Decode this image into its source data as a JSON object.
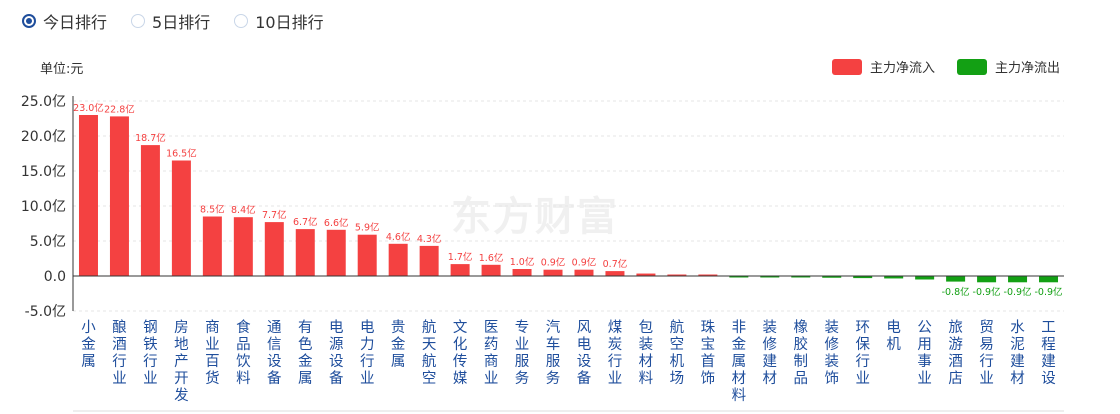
{
  "tabs": [
    {
      "label": "今日排行",
      "selected": true
    },
    {
      "label": "5日排行",
      "selected": false
    },
    {
      "label": "10日排行",
      "selected": false
    }
  ],
  "watermark": "东方财富",
  "chart_data": {
    "type": "bar",
    "unit_label": "单位:元",
    "legend": [
      {
        "name": "主力净流入",
        "color": "#f44141"
      },
      {
        "name": "主力净流出",
        "color": "#13a014"
      }
    ],
    "legend_position": "top-right",
    "grid": true,
    "ylim": [
      -5,
      25
    ],
    "yticks": [
      {
        "value": 25,
        "label": "25.0亿"
      },
      {
        "value": 20,
        "label": "20.0亿"
      },
      {
        "value": 15,
        "label": "15.0亿"
      },
      {
        "value": 10,
        "label": "10.0亿"
      },
      {
        "value": 5,
        "label": "5.0亿"
      },
      {
        "value": 0,
        "label": "0.0"
      },
      {
        "value": -5,
        "label": "-5.0亿"
      }
    ],
    "categories": [
      "小金属",
      "酿酒行业",
      "钢铁行业",
      "房地产开发",
      "商业百货",
      "食品饮料",
      "通信设备",
      "有色金属",
      "电源设备",
      "电力行业",
      "贵金属",
      "航天航空",
      "文化传媒",
      "医药商业",
      "专业服务",
      "汽车服务",
      "风电设备",
      "煤炭行业",
      "包装材料",
      "航空机场",
      "珠宝首饰",
      "非金属材料",
      "装修建材",
      "橡胶制品",
      "装修装饰",
      "环保行业",
      "电机",
      "公用事业",
      "旅游酒店",
      "贸易行业",
      "水泥建材",
      "工程建设"
    ],
    "values": [
      23.0,
      22.8,
      18.7,
      16.5,
      8.5,
      8.4,
      7.7,
      6.7,
      6.6,
      5.9,
      4.6,
      4.3,
      1.7,
      1.6,
      1.0,
      0.9,
      0.9,
      0.7,
      0.35,
      0.05,
      0.04,
      -0.1,
      -0.15,
      -0.2,
      -0.25,
      -0.3,
      -0.35,
      -0.5,
      -0.8,
      -0.9,
      -0.9,
      -0.9
    ],
    "data_labels": [
      "23.0亿",
      "22.8亿",
      "18.7亿",
      "16.5亿",
      "8.5亿",
      "8.4亿",
      "7.7亿",
      "6.7亿",
      "6.6亿",
      "5.9亿",
      "4.6亿",
      "4.3亿",
      "1.7亿",
      "1.6亿",
      "1.0亿",
      "0.9亿",
      "0.9亿",
      "0.7亿",
      "",
      "",
      "",
      "",
      "",
      "",
      "",
      "",
      "",
      "",
      "-0.8亿",
      "-0.9亿",
      "-0.9亿",
      "-0.9亿"
    ],
    "colors": {
      "inflow": "#f44141",
      "outflow": "#13a014",
      "axis": "#333333",
      "grid": "#e6e6e6",
      "category_text": "#1f4e9c"
    }
  }
}
